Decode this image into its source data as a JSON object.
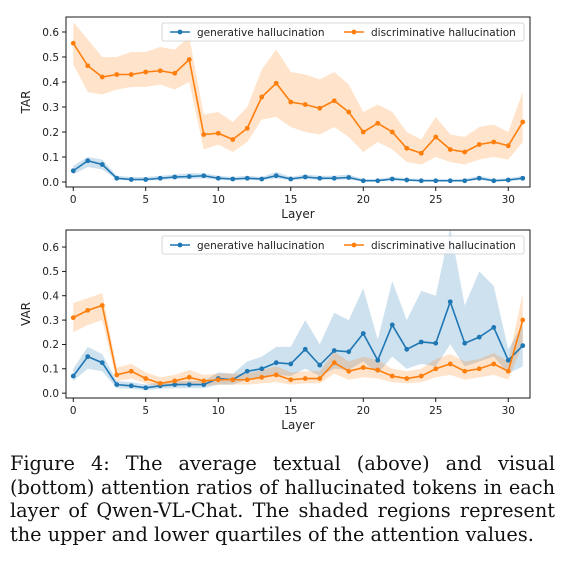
{
  "chart_data": [
    {
      "type": "line",
      "ylabel": "TAR",
      "xlabel": "Layer",
      "xlim": [
        -0.5,
        31.5
      ],
      "ylim": [
        -0.02,
        0.66
      ],
      "xticks": [
        0,
        5,
        10,
        15,
        20,
        25,
        30
      ],
      "yticks": [
        0.0,
        0.1,
        0.2,
        0.3,
        0.4,
        0.5,
        0.6
      ],
      "ytick_labels": [
        "0.0",
        "0.1",
        "0.2",
        "0.3",
        "0.4",
        "0.5",
        "0.6"
      ],
      "legend": "top-right",
      "x": [
        0,
        1,
        2,
        3,
        4,
        5,
        6,
        7,
        8,
        9,
        10,
        11,
        12,
        13,
        14,
        15,
        16,
        17,
        18,
        19,
        20,
        21,
        22,
        23,
        24,
        25,
        26,
        27,
        28,
        29,
        30,
        31
      ],
      "series": [
        {
          "name": "generative hallucination",
          "color": "#1f77b4",
          "values": [
            0.045,
            0.085,
            0.07,
            0.015,
            0.01,
            0.01,
            0.015,
            0.02,
            0.022,
            0.025,
            0.015,
            0.012,
            0.015,
            0.012,
            0.025,
            0.012,
            0.02,
            0.015,
            0.015,
            0.018,
            0.005,
            0.005,
            0.012,
            0.008,
            0.005,
            0.005,
            0.005,
            0.005,
            0.015,
            0.005,
            0.008,
            0.015
          ],
          "lower": [
            0.03,
            0.06,
            0.05,
            0.01,
            0.005,
            0.005,
            0.008,
            0.012,
            0.012,
            0.015,
            0.008,
            0.006,
            0.008,
            0.006,
            0.015,
            0.006,
            0.012,
            0.008,
            0.008,
            0.01,
            0.002,
            0.002,
            0.006,
            0.004,
            0.002,
            0.002,
            0.002,
            0.002,
            0.008,
            0.002,
            0.004,
            0.008
          ],
          "upper": [
            0.065,
            0.1,
            0.09,
            0.025,
            0.02,
            0.02,
            0.025,
            0.03,
            0.035,
            0.035,
            0.025,
            0.02,
            0.025,
            0.02,
            0.04,
            0.02,
            0.03,
            0.025,
            0.025,
            0.03,
            0.012,
            0.012,
            0.02,
            0.015,
            0.012,
            0.012,
            0.012,
            0.012,
            0.025,
            0.012,
            0.015,
            0.025
          ]
        },
        {
          "name": "discriminative  hallucination",
          "color": "#ff7f0e",
          "values": [
            0.555,
            0.465,
            0.42,
            0.43,
            0.43,
            0.44,
            0.445,
            0.435,
            0.49,
            0.19,
            0.195,
            0.17,
            0.215,
            0.34,
            0.395,
            0.32,
            0.31,
            0.295,
            0.325,
            0.28,
            0.2,
            0.235,
            0.2,
            0.135,
            0.115,
            0.18,
            0.13,
            0.12,
            0.15,
            0.16,
            0.145,
            0.24
          ],
          "lower": [
            0.47,
            0.36,
            0.35,
            0.37,
            0.38,
            0.38,
            0.39,
            0.37,
            0.4,
            0.13,
            0.15,
            0.12,
            0.16,
            0.25,
            0.26,
            0.22,
            0.2,
            0.19,
            0.22,
            0.18,
            0.12,
            0.16,
            0.13,
            0.08,
            0.07,
            0.1,
            0.08,
            0.07,
            0.09,
            0.1,
            0.09,
            0.16
          ],
          "upper": [
            0.64,
            0.57,
            0.5,
            0.5,
            0.52,
            0.52,
            0.54,
            0.53,
            0.58,
            0.27,
            0.28,
            0.24,
            0.3,
            0.45,
            0.53,
            0.44,
            0.43,
            0.41,
            0.44,
            0.39,
            0.28,
            0.31,
            0.28,
            0.2,
            0.17,
            0.26,
            0.19,
            0.18,
            0.22,
            0.23,
            0.2,
            0.36
          ]
        }
      ]
    },
    {
      "type": "line",
      "ylabel": "VAR",
      "xlabel": "Layer",
      "xlim": [
        -0.5,
        31.5
      ],
      "ylim": [
        -0.02,
        0.67
      ],
      "xticks": [
        0,
        5,
        10,
        15,
        20,
        25,
        30
      ],
      "yticks": [
        0.0,
        0.1,
        0.2,
        0.3,
        0.4,
        0.5,
        0.6
      ],
      "ytick_labels": [
        "0.0",
        "0.1",
        "0.2",
        "0.3",
        "0.4",
        "0.5",
        "0.6"
      ],
      "legend": "top-right",
      "x": [
        0,
        1,
        2,
        3,
        4,
        5,
        6,
        7,
        8,
        9,
        10,
        11,
        12,
        13,
        14,
        15,
        16,
        17,
        18,
        19,
        20,
        21,
        22,
        23,
        24,
        25,
        26,
        27,
        28,
        29,
        30,
        31
      ],
      "series": [
        {
          "name": "generative hallucination",
          "color": "#1f77b4",
          "values": [
            0.07,
            0.15,
            0.125,
            0.035,
            0.03,
            0.022,
            0.03,
            0.035,
            0.035,
            0.035,
            0.06,
            0.055,
            0.09,
            0.1,
            0.125,
            0.12,
            0.18,
            0.115,
            0.175,
            0.17,
            0.245,
            0.135,
            0.28,
            0.18,
            0.21,
            0.205,
            0.375,
            0.205,
            0.23,
            0.27,
            0.135,
            0.195
          ],
          "lower": [
            0.05,
            0.1,
            0.09,
            0.02,
            0.018,
            0.012,
            0.018,
            0.02,
            0.02,
            0.02,
            0.035,
            0.035,
            0.055,
            0.06,
            0.075,
            0.07,
            0.1,
            0.07,
            0.1,
            0.095,
            0.13,
            0.08,
            0.15,
            0.1,
            0.12,
            0.11,
            0.2,
            0.11,
            0.13,
            0.15,
            0.08,
            0.11
          ],
          "upper": [
            0.1,
            0.19,
            0.16,
            0.05,
            0.045,
            0.035,
            0.045,
            0.05,
            0.05,
            0.05,
            0.085,
            0.08,
            0.13,
            0.15,
            0.19,
            0.19,
            0.3,
            0.2,
            0.33,
            0.3,
            0.43,
            0.22,
            0.46,
            0.3,
            0.42,
            0.4,
            0.68,
            0.36,
            0.5,
            0.44,
            0.18,
            0.28
          ]
        },
        {
          "name": "discriminative  hallucination",
          "color": "#ff7f0e",
          "values": [
            0.31,
            0.34,
            0.36,
            0.075,
            0.09,
            0.06,
            0.04,
            0.05,
            0.065,
            0.05,
            0.055,
            0.055,
            0.055,
            0.065,
            0.075,
            0.055,
            0.06,
            0.06,
            0.125,
            0.09,
            0.105,
            0.095,
            0.07,
            0.06,
            0.07,
            0.1,
            0.12,
            0.09,
            0.1,
            0.12,
            0.09,
            0.3
          ],
          "lower": [
            0.25,
            0.28,
            0.3,
            0.05,
            0.06,
            0.04,
            0.025,
            0.03,
            0.04,
            0.03,
            0.035,
            0.035,
            0.035,
            0.04,
            0.045,
            0.035,
            0.04,
            0.04,
            0.08,
            0.055,
            0.065,
            0.06,
            0.045,
            0.04,
            0.045,
            0.065,
            0.075,
            0.055,
            0.065,
            0.075,
            0.055,
            0.2
          ],
          "upper": [
            0.37,
            0.39,
            0.41,
            0.105,
            0.12,
            0.085,
            0.065,
            0.075,
            0.095,
            0.075,
            0.08,
            0.08,
            0.08,
            0.095,
            0.11,
            0.085,
            0.09,
            0.09,
            0.17,
            0.13,
            0.15,
            0.135,
            0.1,
            0.09,
            0.1,
            0.14,
            0.16,
            0.13,
            0.14,
            0.165,
            0.13,
            0.41
          ]
        }
      ]
    }
  ],
  "caption": "Figure 4: The average textual (above) and visual (bottom) attention ratios of hallucinated tokens in each layer of Qwen-VL-Chat. The shaded regions represent the upper and lower quartiles of the attention values."
}
